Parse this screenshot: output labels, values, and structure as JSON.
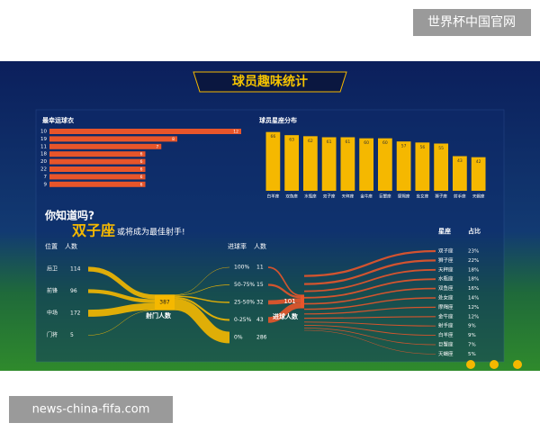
{
  "watermark": "世界杯中国官网",
  "source": "news-china-fifa.com",
  "banner_title": "球员趣味统计",
  "chart_data": [
    {
      "type": "hbar",
      "title": "最幸运球衣",
      "categories": [
        "10",
        "19",
        "11",
        "18",
        "20",
        "22",
        "7",
        "9"
      ],
      "values": [
        12,
        8,
        7,
        6,
        6,
        6,
        6,
        6
      ],
      "color": "#e8552a",
      "xlim": [
        0,
        12
      ]
    },
    {
      "type": "bar",
      "title": "球员星座分布",
      "categories": [
        "白羊座",
        "双鱼座",
        "水瓶座",
        "双子座",
        "天秤座",
        "金牛座",
        "巨蟹座",
        "摩羯座",
        "处女座",
        "狮子座",
        "射手座",
        "天蝎座"
      ],
      "values": [
        66,
        63,
        62,
        61,
        61,
        60,
        60,
        57,
        56,
        55,
        43,
        42
      ],
      "color": "#f5b800",
      "ylim": [
        10,
        70
      ]
    },
    {
      "type": "sankey",
      "intro": "你知道吗?",
      "highlight": "双子座",
      "highlight_text": "或将成为最佳射手!",
      "position_header": "位置",
      "position_count_header": "人数",
      "positions": [
        "后卫",
        "前锋",
        "中场",
        "门将"
      ],
      "position_counts": [
        114,
        96,
        172,
        5
      ],
      "shot_total": 387,
      "shot_label": "射门人数",
      "rate_header": "进球率",
      "rate_count_header": "人数",
      "rates": [
        "100%",
        "50-75%",
        "25-50%",
        "0-25%",
        "0%"
      ],
      "rate_counts": [
        11,
        15,
        32,
        43,
        286
      ],
      "goal_total": 101,
      "goal_label": "进球人数",
      "sign_header": "星座",
      "share_header": "占比",
      "signs": [
        "双子座",
        "狮子座",
        "天秤座",
        "水瓶座",
        "双鱼座",
        "处女座",
        "摩羯座",
        "金牛座",
        "射手座",
        "白羊座",
        "巨蟹座",
        "天蝎座"
      ],
      "shares": [
        23,
        22,
        18,
        18,
        16,
        14,
        12,
        12,
        9,
        9,
        7,
        5
      ],
      "share_labels": [
        "23%",
        "22%",
        "18%",
        "18%",
        "16%",
        "14%",
        "12%",
        "12%",
        "9%",
        "9%",
        "7%",
        "5%"
      ],
      "color": "#f5b800",
      "fan_color": "#e8552a"
    }
  ]
}
